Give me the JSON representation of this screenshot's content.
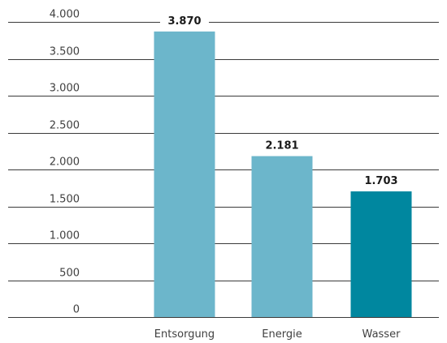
{
  "chart_data": {
    "type": "bar",
    "categories": [
      "Entsorgung",
      "Energie",
      "Wasser"
    ],
    "values": [
      3870,
      2181,
      1703
    ],
    "value_labels": [
      "3.870",
      "2.181",
      "1.703"
    ],
    "ylim": [
      0,
      4000
    ],
    "yticks": [
      0,
      500,
      1000,
      1500,
      2000,
      2500,
      3000,
      3500,
      4000
    ],
    "ytick_labels": [
      "0",
      "500",
      "1.000",
      "1.500",
      "2.000",
      "2.500",
      "3.000",
      "3.500",
      "4.000"
    ],
    "grid": true,
    "colors": [
      "#6cb6cb",
      "#6cb6cb",
      "#00879f"
    ]
  }
}
